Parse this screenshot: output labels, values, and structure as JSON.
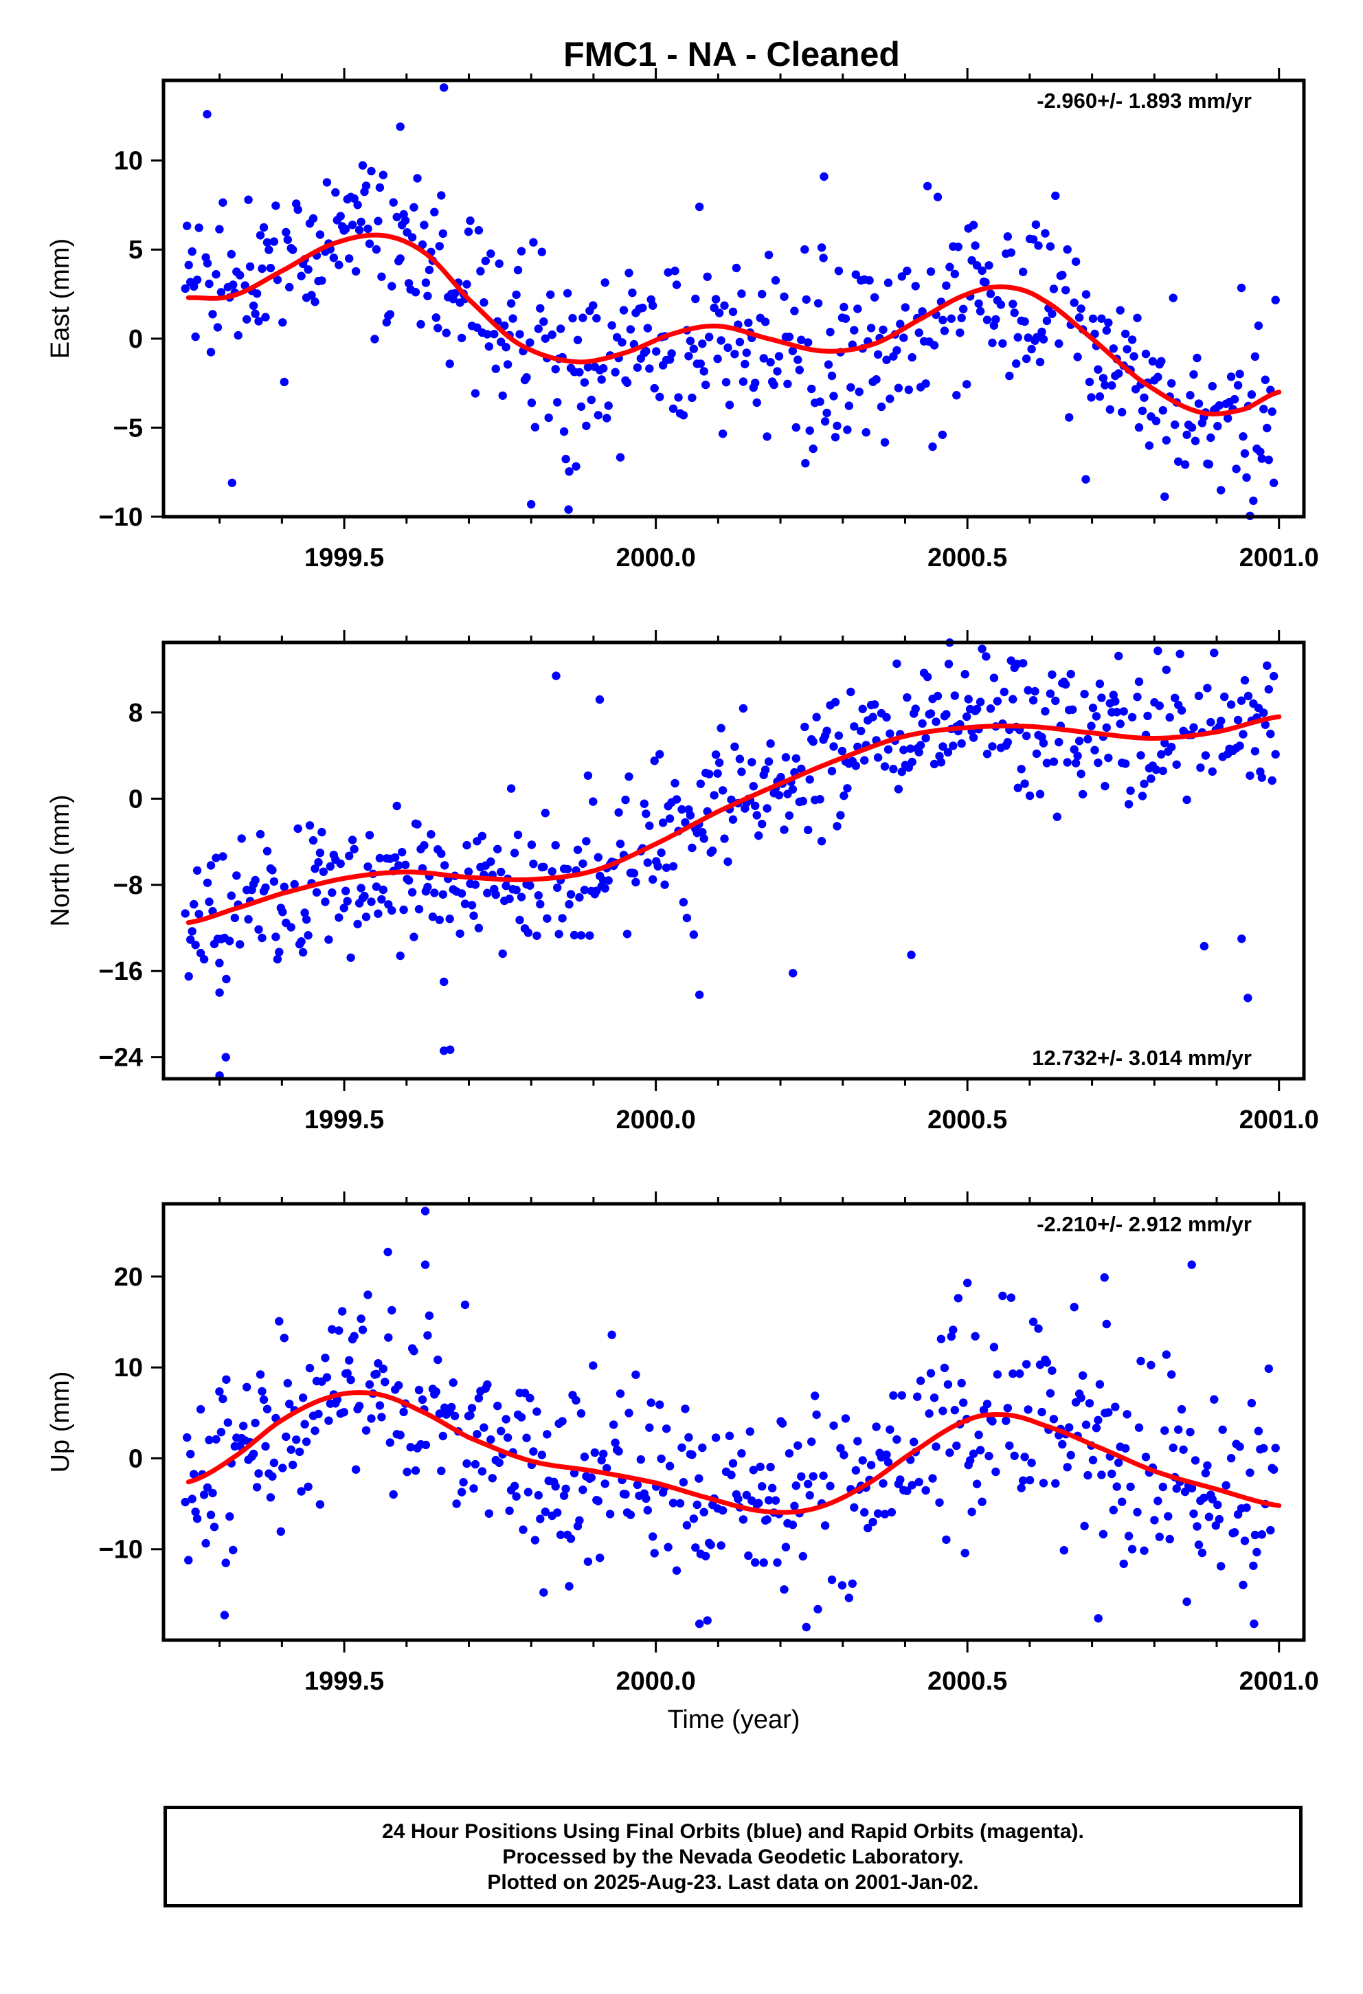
{
  "title": "FMC1  - NA - Cleaned",
  "footer": {
    "lines": [
      "24 Hour Positions Using Final Orbits (blue) and Rapid Orbits (magenta).",
      "Processed by the Nevada Geodetic Laboratory.",
      "Plotted on 2025-Aug-23. Last data on 2001-Jan-02."
    ]
  },
  "colors": {
    "points": "#0000ff",
    "fit": "#ff0000",
    "frame": "#000000"
  },
  "chart_data": [
    {
      "type": "scatter",
      "ylabel": "East (mm)",
      "xlabel": "",
      "xlim": [
        1999.21,
        2001.04
      ],
      "ylim": [
        -10,
        14.5
      ],
      "xticks": [
        "1999.5",
        "2000.0",
        "2000.5",
        "2001.0"
      ],
      "yticks": [
        "−10",
        "−5",
        "0",
        "5",
        "10"
      ],
      "rate_label": "-2.960+/- 1.893 mm/yr",
      "rate_position": "top-right",
      "trend_knots": {
        "x": [
          1999.25,
          1999.32,
          1999.4,
          1999.48,
          1999.56,
          1999.63,
          1999.7,
          1999.78,
          1999.87,
          1999.95,
          2000.03,
          2000.1,
          2000.18,
          2000.27,
          2000.35,
          2000.43,
          2000.5,
          2000.56,
          2000.62,
          2000.7,
          2000.78,
          2000.87,
          2000.94,
          2001.0
        ],
        "y": [
          2.3,
          2.4,
          3.8,
          5.3,
          5.8,
          4.8,
          2.2,
          -0.3,
          -1.3,
          -0.8,
          0.3,
          0.7,
          0.0,
          -0.7,
          -0.3,
          1.2,
          2.5,
          2.9,
          2.2,
          0.0,
          -2.4,
          -4.1,
          -4.0,
          -3.0
        ]
      },
      "noise": 2.6,
      "outliers": [
        [
          1999.28,
          12.6
        ],
        [
          1999.32,
          -8.1
        ],
        [
          1999.66,
          14.1
        ],
        [
          2000.07,
          7.4
        ],
        [
          2000.27,
          9.1
        ],
        [
          2000.24,
          -7.0
        ],
        [
          2000.46,
          -5.4
        ],
        [
          2000.69,
          -7.9
        ],
        [
          1999.8,
          -9.3
        ],
        [
          1999.86,
          -9.6
        ],
        [
          2000.61,
          6.4
        ],
        [
          1999.59,
          11.9
        ]
      ]
    },
    {
      "type": "scatter",
      "ylabel": "North (mm)",
      "xlabel": "",
      "xlim": [
        1999.21,
        2001.04
      ],
      "ylim": [
        -26,
        14.5
      ],
      "xticks": [
        "1999.5",
        "2000.0",
        "2000.5",
        "2001.0"
      ],
      "yticks": [
        "−24",
        "−16",
        "−8",
        "0",
        "8"
      ],
      "rate_label": "12.732+/- 3.014 mm/yr",
      "rate_position": "bottom-right",
      "trend_knots": {
        "x": [
          1999.25,
          1999.32,
          1999.4,
          1999.5,
          1999.6,
          1999.7,
          1999.8,
          1999.9,
          2000.0,
          2000.1,
          2000.2,
          2000.3,
          2000.4,
          2000.5,
          2000.6,
          2000.7,
          2000.8,
          2000.9,
          2001.0
        ],
        "y": [
          -11.5,
          -10.3,
          -8.8,
          -7.4,
          -6.8,
          -7.3,
          -7.5,
          -6.7,
          -4.2,
          -1.2,
          1.4,
          3.8,
          5.8,
          6.6,
          6.7,
          6.1,
          5.6,
          6.2,
          7.6
        ]
      },
      "noise": 3.2,
      "outliers": [
        [
          1999.3,
          -25.7
        ],
        [
          1999.31,
          -24.0
        ],
        [
          1999.3,
          -18.0
        ],
        [
          1999.66,
          -23.4
        ],
        [
          1999.67,
          -23.3
        ],
        [
          1999.66,
          -17.0
        ],
        [
          1999.84,
          11.4
        ],
        [
          2000.07,
          -18.2
        ],
        [
          2000.22,
          -16.2
        ],
        [
          2000.41,
          -14.5
        ],
        [
          2000.47,
          12.5
        ],
        [
          2000.53,
          13.2
        ],
        [
          2000.58,
          12.5
        ],
        [
          2000.88,
          -13.7
        ],
        [
          2000.95,
          -18.5
        ],
        [
          2000.94,
          -13.0
        ],
        [
          1999.91,
          9.2
        ]
      ]
    },
    {
      "type": "scatter",
      "ylabel": "Up (mm)",
      "xlabel": "Time (year)",
      "xlim": [
        1999.21,
        2001.04
      ],
      "ylim": [
        -20,
        28
      ],
      "xticks": [
        "1999.5",
        "2000.0",
        "2000.5",
        "2001.0"
      ],
      "yticks": [
        "−10",
        "0",
        "10",
        "20"
      ],
      "rate_label": "-2.210+/- 2.912 mm/yr",
      "rate_position": "top-right",
      "trend_knots": {
        "x": [
          1999.25,
          1999.32,
          1999.4,
          1999.48,
          1999.55,
          1999.62,
          1999.7,
          1999.8,
          1999.9,
          2000.0,
          2000.08,
          2000.17,
          2000.25,
          2000.33,
          2000.42,
          2000.5,
          2000.56,
          2000.62,
          2000.7,
          2000.8,
          2000.9,
          2001.0
        ],
        "y": [
          -2.6,
          0.0,
          4.2,
          6.8,
          7.1,
          5.3,
          2.3,
          -0.3,
          -1.4,
          -2.7,
          -4.3,
          -5.8,
          -5.6,
          -3.2,
          1.0,
          4.2,
          4.8,
          3.7,
          1.5,
          -1.4,
          -3.4,
          -5.2
        ]
      },
      "noise": 5.5,
      "outliers": [
        [
          1999.63,
          27.2
        ],
        [
          1999.57,
          22.7
        ],
        [
          1999.63,
          21.3
        ],
        [
          2000.86,
          21.3
        ],
        [
          2000.72,
          19.9
        ],
        [
          2000.5,
          19.3
        ],
        [
          2000.07,
          -18.2
        ],
        [
          2000.96,
          -18.2
        ],
        [
          2000.71,
          -17.6
        ],
        [
          2000.26,
          -16.6
        ],
        [
          1999.31,
          -11.5
        ],
        [
          1999.25,
          -11.2
        ]
      ]
    }
  ]
}
